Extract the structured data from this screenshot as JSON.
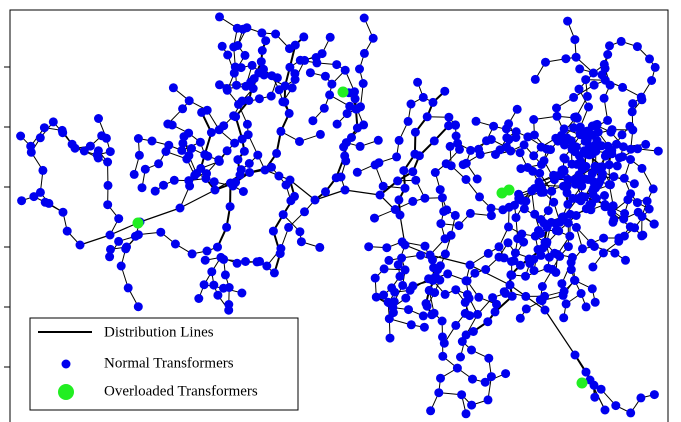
{
  "legend": {
    "items": [
      {
        "label": "Distribution Lines"
      },
      {
        "label": "Normal Transformers"
      },
      {
        "label": "Overloaded Transformers"
      }
    ]
  }
}
